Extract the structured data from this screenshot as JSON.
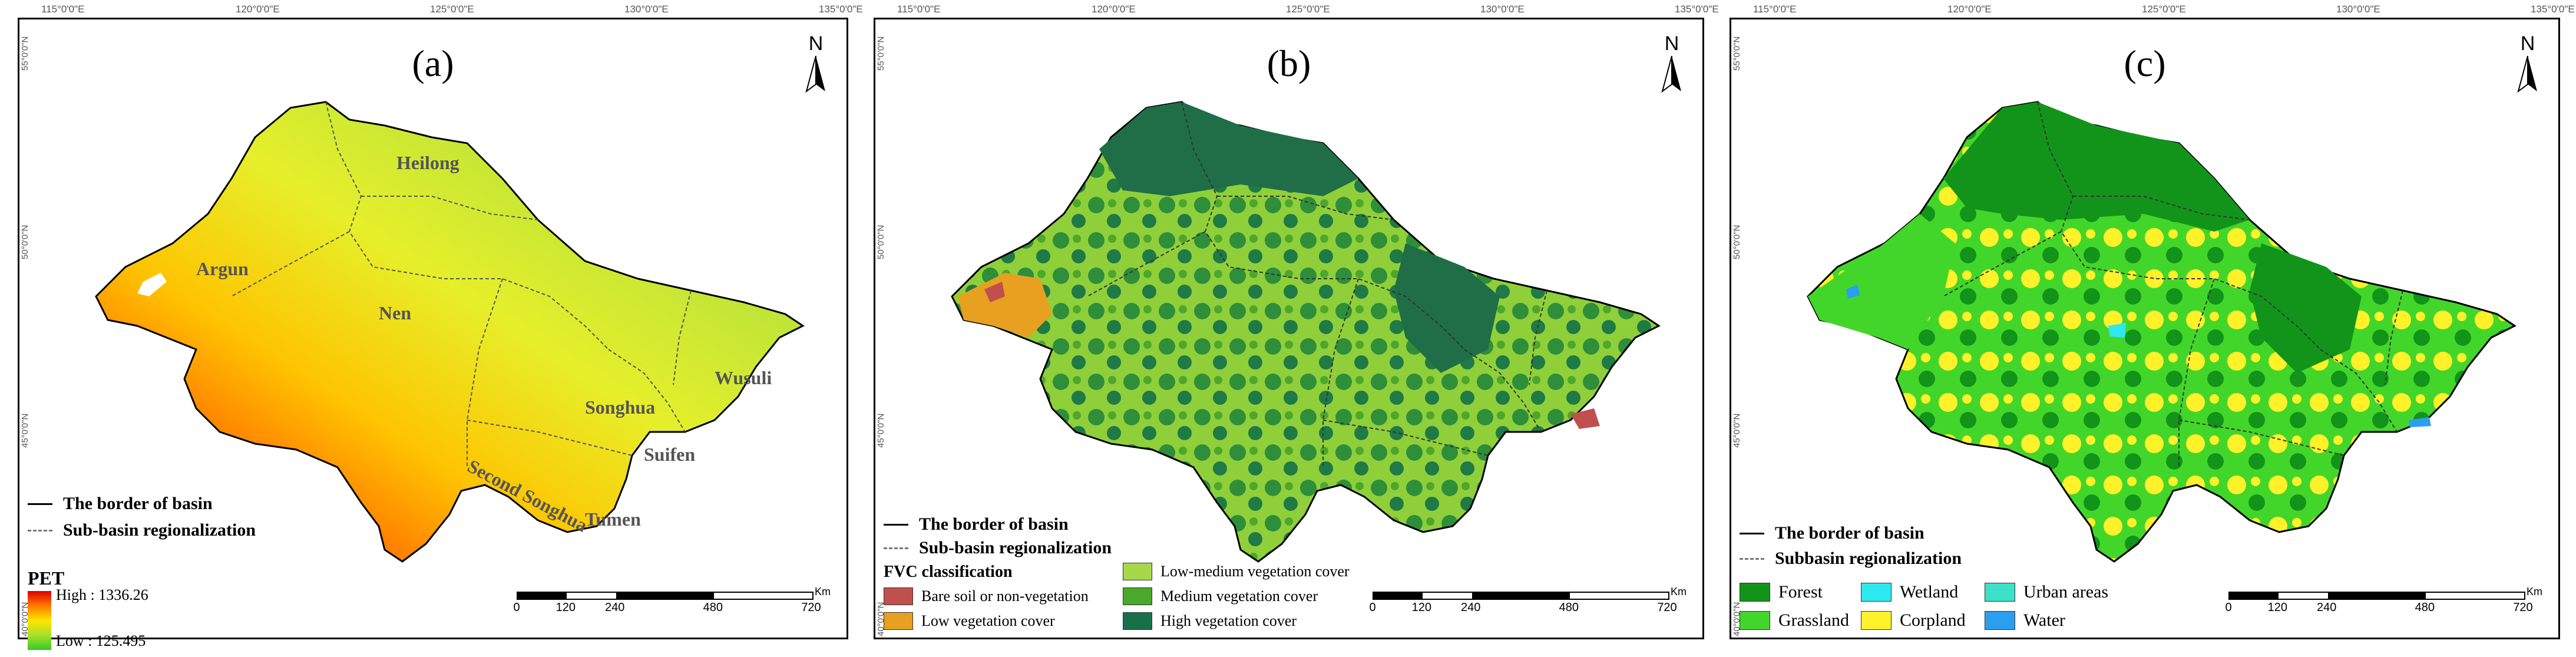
{
  "lon_ticks": [
    "115°0'0\"E",
    "120°0'0\"E",
    "125°0'0\"E",
    "130°0'0\"E",
    "135°0'0\"E"
  ],
  "lon_ticks_b": [
    "115°0'0\"E",
    "120°0'0\"E",
    "125°0'0\"E",
    "130°0'0\"E",
    "135°0'0\"E"
  ],
  "lat_ticks": [
    "55°0'0\"N",
    "50°0'0\"N",
    "45°0'0\"N",
    "40°0'0\"N"
  ],
  "north_letter": "N",
  "scale": {
    "unit": "Km",
    "labels": [
      "0",
      "120",
      "240",
      "480",
      "720"
    ]
  },
  "border_label": "The border of basin",
  "panel_a": {
    "label": "(a)",
    "subbasin_label": "Sub-basin regionalization",
    "basins": [
      "Heilong",
      "Argun",
      "Nen",
      "Songhua",
      "Wusuli",
      "Second Songhua",
      "Suifen",
      "Tumen"
    ],
    "legend": {
      "title": "PET",
      "high": "High : 1336.26",
      "low": "Low : 125.495"
    },
    "colors": {
      "high": "#e00000",
      "mid": "#ffe500",
      "low": "#36c928"
    }
  },
  "panel_b": {
    "label": "(b)",
    "subbasin_label": "Sub-basin regionalization",
    "legend_title": "FVC classification",
    "classes": [
      {
        "label": "Bare soil or non-vegetation",
        "color": "#c0504d"
      },
      {
        "label": "Low vegetation cover",
        "color": "#e8a020"
      },
      {
        "label": "Low-medium vegetation cover",
        "color": "#a6d84a"
      },
      {
        "label": "Medium vegetation cover",
        "color": "#4ca82c"
      },
      {
        "label": "High vegetation cover",
        "color": "#17704a"
      }
    ]
  },
  "panel_c": {
    "label": "(c)",
    "subbasin_label": "Subbasin regionalization",
    "classes": [
      {
        "label": "Forest",
        "color": "#12941a"
      },
      {
        "label": "Wetland",
        "color": "#2ee8f0"
      },
      {
        "label": "Urban areas",
        "color": "#3de0c8"
      },
      {
        "label": "Grassland",
        "color": "#43d62a"
      },
      {
        "label": "Corpland",
        "color": "#fff12a"
      },
      {
        "label": "Water",
        "color": "#2a9ff0"
      }
    ]
  }
}
